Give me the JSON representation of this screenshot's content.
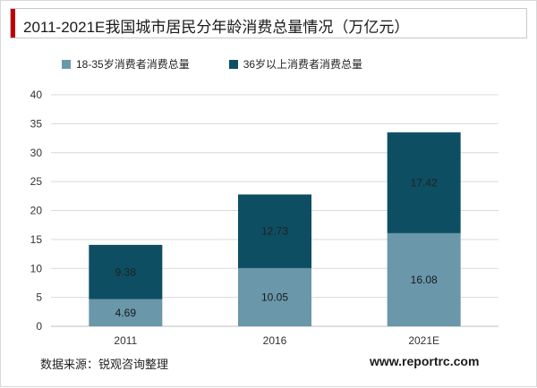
{
  "title": "2011-2021E我国城市居民分年龄消费总量情况（万亿元）",
  "chart_data": {
    "type": "bar",
    "stacked": true,
    "title": "2011-2021E我国城市居民分年龄消费总量情况（万亿元）",
    "categories": [
      "2011",
      "2016",
      "2021E"
    ],
    "series": [
      {
        "name": "18-35岁消费者消费总量",
        "values": [
          4.69,
          10.05,
          16.08
        ],
        "color": "#6a97aa"
      },
      {
        "name": "36岁以上消费者消费总量",
        "values": [
          9.38,
          12.73,
          17.42
        ],
        "color": "#0d4e62"
      }
    ],
    "ylim": [
      0,
      40
    ],
    "yticks": [
      0,
      5,
      10,
      15,
      20,
      25,
      30,
      35,
      40
    ],
    "grid": true,
    "legend": "top-left",
    "xlabel": "",
    "ylabel": ""
  },
  "footer": {
    "source": "数据来源：锐观咨询整理",
    "site": "www.reportrc.com"
  }
}
